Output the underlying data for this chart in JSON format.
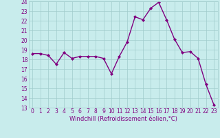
{
  "x": [
    0,
    1,
    2,
    3,
    4,
    5,
    6,
    7,
    8,
    9,
    10,
    11,
    12,
    13,
    14,
    15,
    16,
    17,
    18,
    19,
    20,
    21,
    22,
    23
  ],
  "y": [
    18.6,
    18.6,
    18.4,
    17.5,
    18.7,
    18.1,
    18.3,
    18.3,
    18.3,
    18.1,
    16.5,
    18.3,
    19.8,
    22.4,
    22.1,
    23.3,
    23.9,
    22.1,
    20.1,
    18.7,
    18.8,
    18.1,
    15.4,
    13.3
  ],
  "line_color": "#800080",
  "marker": "D",
  "marker_size": 2.0,
  "bg_color": "#c8ecec",
  "grid_color": "#a0cccc",
  "xlabel": "Windchill (Refroidissement éolien,°C)",
  "xlabel_color": "#800080",
  "tick_color": "#800080",
  "ylim": [
    13,
    24
  ],
  "yticks": [
    13,
    14,
    15,
    16,
    17,
    18,
    19,
    20,
    21,
    22,
    23,
    24
  ],
  "xticks": [
    0,
    1,
    2,
    3,
    4,
    5,
    6,
    7,
    8,
    9,
    10,
    11,
    12,
    13,
    14,
    15,
    16,
    17,
    18,
    19,
    20,
    21,
    22,
    23
  ],
  "linewidth": 1.0,
  "tick_fontsize": 5.5,
  "xlabel_fontsize": 6.0
}
